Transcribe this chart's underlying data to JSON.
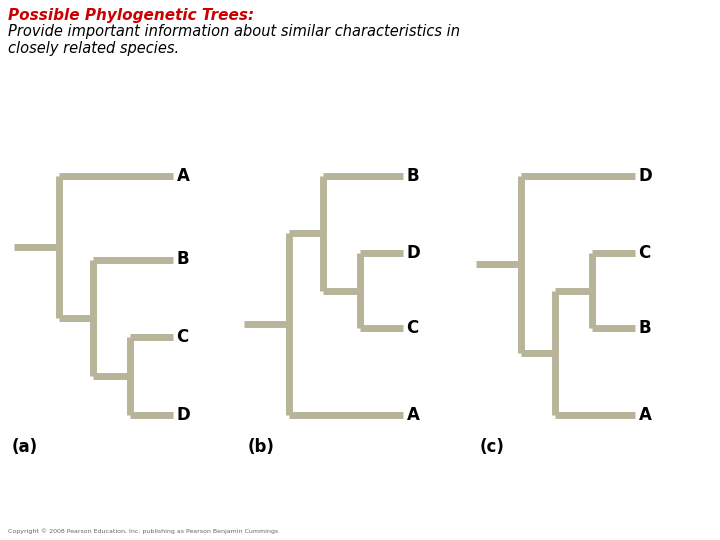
{
  "title_bold": "Possible Phylogenetic Trees:",
  "title_normal": "Provide important information about similar characteristics in\nclosely related species.",
  "title_color": "#cc0000",
  "title_normal_color": "#000000",
  "tree_color": "#b8b49a",
  "line_width": 5,
  "background_color": "#ffffff",
  "copyright": "Copyright © 2008 Pearson Education, Inc. publishing as Pearson Benjamin Cummings"
}
